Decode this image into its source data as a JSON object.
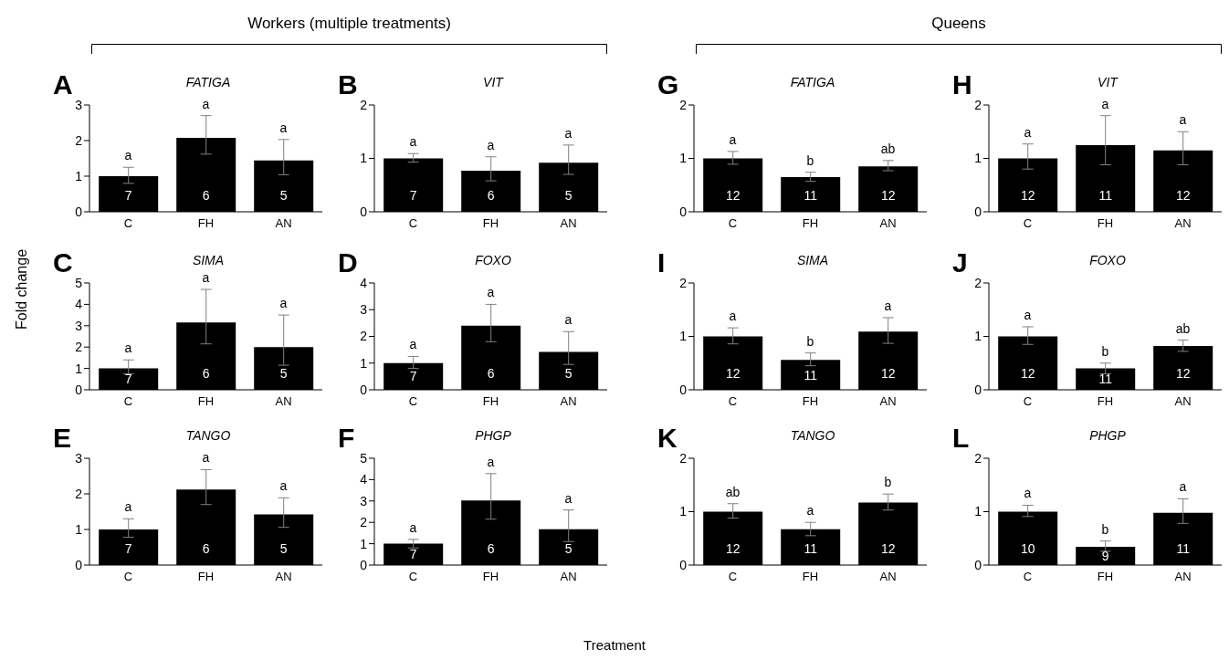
{
  "chart_data": [
    {
      "type": "bar",
      "title": "FATIGA",
      "categories": [
        "C",
        "FH",
        "AN"
      ],
      "values": [
        1.0,
        2.08,
        1.44
      ],
      "color": "#000000",
      "errors": [
        [
          0.8,
          1.25
        ],
        [
          1.62,
          2.7
        ],
        [
          1.04,
          2.03
        ]
      ],
      "ylim": [
        0,
        3
      ],
      "yticks": [
        0,
        1,
        2,
        3
      ],
      "annotations": [
        "A",
        "Workers (multiple treatments)",
        {
          "text": "a",
          "x": "C",
          "y": 1.25
        },
        {
          "text": "a",
          "x": "FH",
          "y": 2.7
        },
        {
          "text": "a",
          "x": "AN",
          "y": 2.03
        },
        "7",
        "6",
        "5"
      ]
    },
    {
      "type": "bar",
      "title": "VIT",
      "categories": [
        "C",
        "FH",
        "AN"
      ],
      "values": [
        1.0,
        0.77,
        0.92
      ],
      "color": "#000000",
      "errors": [
        [
          0.93,
          1.09
        ],
        [
          0.58,
          1.03
        ],
        [
          0.7,
          1.25
        ]
      ],
      "ylim": [
        0,
        2
      ],
      "yticks": [
        0,
        1,
        2
      ],
      "annotations": [
        "B",
        {
          "text": "a",
          "x": "C",
          "y": 1.09
        },
        {
          "text": "a",
          "x": "FH",
          "y": 1.03
        },
        {
          "text": "a",
          "x": "AN",
          "y": 1.25
        },
        "7",
        "6",
        "5"
      ]
    },
    {
      "type": "bar",
      "title": "SIMA",
      "categories": [
        "C",
        "FH",
        "AN"
      ],
      "values": [
        1.0,
        3.15,
        2.0
      ],
      "color": "#000000",
      "errors": [
        [
          0.75,
          1.4
        ],
        [
          2.15,
          4.7
        ],
        [
          1.15,
          3.5
        ]
      ],
      "ylim": [
        0,
        5
      ],
      "yticks": [
        0,
        1,
        2,
        3,
        4,
        5
      ],
      "ylabel": "Fold change",
      "annotations": [
        "C",
        {
          "text": "a",
          "x": "C",
          "y": 1.4
        },
        {
          "text": "a",
          "x": "FH",
          "y": 4.7
        },
        {
          "text": "a",
          "x": "AN",
          "y": 3.5
        },
        "7",
        "6",
        "5"
      ]
    },
    {
      "type": "bar",
      "title": "FOXO",
      "categories": [
        "C",
        "FH",
        "AN"
      ],
      "values": [
        1.0,
        2.4,
        1.42
      ],
      "color": "#000000",
      "errors": [
        [
          0.8,
          1.25
        ],
        [
          1.8,
          3.2
        ],
        [
          0.95,
          2.18
        ]
      ],
      "ylim": [
        0,
        4
      ],
      "yticks": [
        0,
        1,
        2,
        3,
        4
      ],
      "annotations": [
        "D",
        {
          "text": "a",
          "x": "C",
          "y": 1.25
        },
        {
          "text": "a",
          "x": "FH",
          "y": 3.2
        },
        {
          "text": "a",
          "x": "AN",
          "y": 2.18
        },
        "7",
        "6",
        "5"
      ]
    },
    {
      "type": "bar",
      "title": "TANGO",
      "categories": [
        "C",
        "FH",
        "AN"
      ],
      "values": [
        1.0,
        2.12,
        1.42
      ],
      "color": "#000000",
      "errors": [
        [
          0.78,
          1.3
        ],
        [
          1.7,
          2.68
        ],
        [
          1.06,
          1.89
        ]
      ],
      "ylim": [
        0,
        3
      ],
      "yticks": [
        0,
        1,
        2,
        3
      ],
      "annotations": [
        "E",
        {
          "text": "a",
          "x": "C",
          "y": 1.3
        },
        {
          "text": "a",
          "x": "FH",
          "y": 2.68
        },
        {
          "text": "a",
          "x": "AN",
          "y": 1.89
        },
        "7",
        "6",
        "5"
      ]
    },
    {
      "type": "bar",
      "title": "PHGP",
      "categories": [
        "C",
        "FH",
        "AN"
      ],
      "values": [
        1.0,
        3.02,
        1.68
      ],
      "color": "#000000",
      "errors": [
        [
          0.8,
          1.2
        ],
        [
          2.15,
          4.28
        ],
        [
          1.1,
          2.58
        ]
      ],
      "ylim": [
        0,
        5
      ],
      "yticks": [
        0,
        1,
        2,
        3,
        4,
        5
      ],
      "xlabel": "Treatment",
      "annotations": [
        "F",
        {
          "text": "a",
          "x": "C",
          "y": 1.2
        },
        {
          "text": "a",
          "x": "FH",
          "y": 4.28
        },
        {
          "text": "a",
          "x": "AN",
          "y": 2.58
        },
        "7",
        "6",
        "5"
      ]
    },
    {
      "type": "bar",
      "title": "FATIGA",
      "categories": [
        "C",
        "FH",
        "AN"
      ],
      "values": [
        1.0,
        0.65,
        0.85
      ],
      "color": "#000000",
      "errors": [
        [
          0.89,
          1.13
        ],
        [
          0.57,
          0.74
        ],
        [
          0.77,
          0.96
        ]
      ],
      "ylim": [
        0,
        2
      ],
      "yticks": [
        0,
        1,
        2
      ],
      "annotations": [
        "G",
        "Queens",
        {
          "text": "a",
          "x": "C",
          "y": 1.13
        },
        {
          "text": "b",
          "x": "FH",
          "y": 0.74
        },
        {
          "text": "ab",
          "x": "AN",
          "y": 0.96
        },
        "12",
        "11",
        "12"
      ]
    },
    {
      "type": "bar",
      "title": "VIT",
      "categories": [
        "C",
        "FH",
        "AN"
      ],
      "values": [
        1.0,
        1.25,
        1.15
      ],
      "color": "#000000",
      "errors": [
        [
          0.8,
          1.27
        ],
        [
          0.88,
          1.8
        ],
        [
          0.88,
          1.5
        ]
      ],
      "ylim": [
        0,
        2
      ],
      "yticks": [
        0,
        1,
        2
      ],
      "annotations": [
        "H",
        {
          "text": "a",
          "x": "C",
          "y": 1.27
        },
        {
          "text": "a",
          "x": "FH",
          "y": 1.8
        },
        {
          "text": "a",
          "x": "AN",
          "y": 1.5
        },
        "12",
        "11",
        "12"
      ]
    },
    {
      "type": "bar",
      "title": "SIMA",
      "categories": [
        "C",
        "FH",
        "AN"
      ],
      "values": [
        1.0,
        0.56,
        1.09
      ],
      "color": "#000000",
      "errors": [
        [
          0.86,
          1.16
        ],
        [
          0.45,
          0.69
        ],
        [
          0.87,
          1.35
        ]
      ],
      "ylim": [
        0,
        2
      ],
      "yticks": [
        0,
        1,
        2
      ],
      "annotations": [
        "I",
        {
          "text": "a",
          "x": "C",
          "y": 1.16
        },
        {
          "text": "b",
          "x": "FH",
          "y": 0.69
        },
        {
          "text": "a",
          "x": "AN",
          "y": 1.35
        },
        "12",
        "11",
        "12"
      ]
    },
    {
      "type": "bar",
      "title": "FOXO",
      "categories": [
        "C",
        "FH",
        "AN"
      ],
      "values": [
        1.0,
        0.4,
        0.82
      ],
      "color": "#000000",
      "errors": [
        [
          0.85,
          1.18
        ],
        [
          0.3,
          0.5
        ],
        [
          0.72,
          0.93
        ]
      ],
      "ylim": [
        0,
        2
      ],
      "yticks": [
        0,
        1,
        2
      ],
      "annotations": [
        "J",
        {
          "text": "a",
          "x": "C",
          "y": 1.18
        },
        {
          "text": "b",
          "x": "FH",
          "y": 0.5
        },
        {
          "text": "ab",
          "x": "AN",
          "y": 0.93
        },
        "12",
        "11",
        "12"
      ]
    },
    {
      "type": "bar",
      "title": "TANGO",
      "categories": [
        "C",
        "FH",
        "AN"
      ],
      "values": [
        1.0,
        0.67,
        1.17
      ],
      "color": "#000000",
      "errors": [
        [
          0.88,
          1.15
        ],
        [
          0.55,
          0.8
        ],
        [
          1.03,
          1.33
        ]
      ],
      "ylim": [
        0,
        2
      ],
      "yticks": [
        0,
        1,
        2
      ],
      "annotations": [
        "K",
        {
          "text": "ab",
          "x": "C",
          "y": 1.15
        },
        {
          "text": "a",
          "x": "FH",
          "y": 0.8
        },
        {
          "text": "b",
          "x": "AN",
          "y": 1.33
        },
        "12",
        "11",
        "12"
      ]
    },
    {
      "type": "bar",
      "title": "PHGP",
      "categories": [
        "C",
        "FH",
        "AN"
      ],
      "values": [
        1.0,
        0.34,
        0.98
      ],
      "color": "#000000",
      "errors": [
        [
          0.91,
          1.12
        ],
        [
          0.26,
          0.45
        ],
        [
          0.78,
          1.24
        ]
      ],
      "ylim": [
        0,
        2
      ],
      "yticks": [
        0,
        1,
        2
      ],
      "annotations": [
        "L",
        {
          "text": "a",
          "x": "C",
          "y": 1.12
        },
        {
          "text": "b",
          "x": "FH",
          "y": 0.45
        },
        {
          "text": "a",
          "x": "AN",
          "y": 1.24
        },
        "10",
        "9",
        "11"
      ]
    }
  ]
}
